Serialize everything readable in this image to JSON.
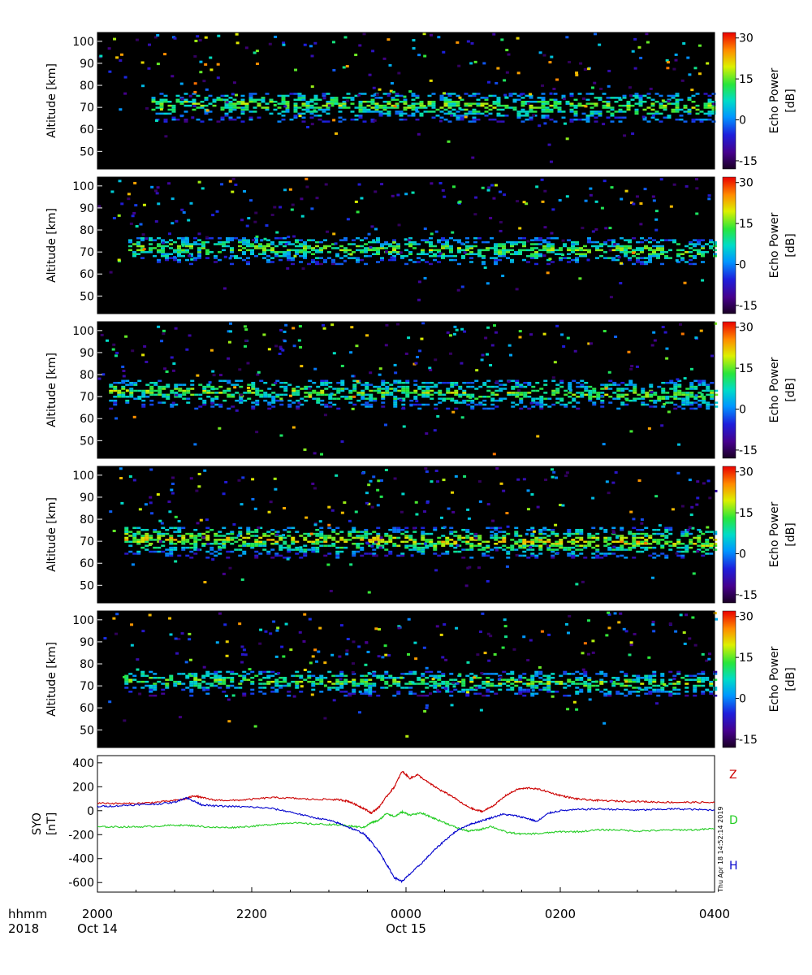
{
  "chart_data": [
    {
      "type": "heatmap",
      "ylabel": "Altitude [km]",
      "ylim": [
        42,
        104
      ],
      "yticks": [
        50,
        60,
        70,
        80,
        90,
        100
      ],
      "colorbar": {
        "label_line1": "Echo Power",
        "label_line2": "[dB]",
        "range": [
          -18,
          32
        ],
        "ticks": [
          30,
          15,
          0,
          -15
        ]
      },
      "echo_layer": {
        "start_hour": 1.4,
        "altitude_top_km": 76,
        "altitude_bottom_km": 68,
        "peak_db": 15
      }
    },
    {
      "type": "heatmap",
      "ylabel": "Altitude [km]",
      "ylim": [
        42,
        104
      ],
      "yticks": [
        50,
        60,
        70,
        80,
        90,
        100
      ],
      "colorbar": {
        "label_line1": "Echo Power",
        "label_line2": "[dB]",
        "range": [
          -18,
          32
        ],
        "ticks": [
          30,
          15,
          0,
          -15
        ]
      },
      "echo_layer": {
        "start_hour": 0.8,
        "altitude_top_km": 76,
        "altitude_bottom_km": 69,
        "peak_db": 15
      }
    },
    {
      "type": "heatmap",
      "ylabel": "Altitude [km]",
      "ylim": [
        42,
        104
      ],
      "yticks": [
        50,
        60,
        70,
        80,
        90,
        100
      ],
      "colorbar": {
        "label_line1": "Echo Power",
        "label_line2": "[dB]",
        "range": [
          -18,
          32
        ],
        "ticks": [
          30,
          15,
          0,
          -15
        ]
      },
      "echo_layer": {
        "start_hour": 0.3,
        "altitude_top_km": 77,
        "altitude_bottom_km": 69,
        "peak_db": 15
      }
    },
    {
      "type": "heatmap",
      "ylabel": "Altitude [km]",
      "ylim": [
        42,
        104
      ],
      "yticks": [
        50,
        60,
        70,
        80,
        90,
        100
      ],
      "colorbar": {
        "label_line1": "Echo Power",
        "label_line2": "[dB]",
        "range": [
          -18,
          32
        ],
        "ticks": [
          30,
          15,
          0,
          -15
        ]
      },
      "echo_layer": {
        "start_hour": 0.7,
        "altitude_top_km": 76,
        "altitude_bottom_km": 67,
        "peak_db": 20
      }
    },
    {
      "type": "heatmap",
      "ylabel": "Altitude [km]",
      "ylim": [
        42,
        104
      ],
      "yticks": [
        50,
        60,
        70,
        80,
        90,
        100
      ],
      "colorbar": {
        "label_line1": "Echo Power",
        "label_line2": "[dB]",
        "range": [
          -18,
          32
        ],
        "ticks": [
          30,
          15,
          0,
          -15
        ]
      },
      "echo_layer": {
        "start_hour": 0.7,
        "altitude_top_km": 76,
        "altitude_bottom_km": 70,
        "peak_db": 15
      }
    },
    {
      "type": "line",
      "ylabel_line1": "SYO",
      "ylabel_line2": "[nT]",
      "ylim": [
        -680,
        460
      ],
      "yticks": [
        400,
        200,
        0,
        -200,
        -400,
        -600
      ],
      "x_label_hours": "hours since 2000 UT Oct 14",
      "series": [
        {
          "name": "Z",
          "color": "#cc0000",
          "x": [
            0,
            0.5,
            1.0,
            1.5,
            2.0,
            2.3,
            2.5,
            2.7,
            3.0,
            3.5,
            4.0,
            4.5,
            5.0,
            5.5,
            6.0,
            6.3,
            6.5,
            6.7,
            6.9,
            7.1,
            7.3,
            7.5,
            7.7,
            7.9,
            8.1,
            8.3,
            8.6,
            8.9,
            9.2,
            9.5,
            9.8,
            10.0,
            10.3,
            10.6,
            10.9,
            11.2,
            11.5,
            11.8,
            12.1,
            12.4,
            12.7,
            13.0,
            13.5,
            14.0,
            14.5,
            15.0,
            15.5,
            16.0
          ],
          "values": [
            65,
            60,
            60,
            70,
            85,
            100,
            125,
            110,
            90,
            85,
            95,
            110,
            105,
            95,
            95,
            90,
            80,
            50,
            20,
            -20,
            30,
            120,
            200,
            330,
            270,
            300,
            230,
            170,
            120,
            50,
            5,
            -5,
            50,
            130,
            180,
            190,
            175,
            145,
            120,
            100,
            90,
            85,
            80,
            78,
            72,
            70,
            70,
            68
          ]
        },
        {
          "name": "D",
          "color": "#22cc22",
          "x": [
            0,
            0.5,
            1.0,
            1.5,
            2.0,
            2.5,
            3.0,
            3.5,
            4.0,
            4.5,
            5.0,
            5.5,
            6.0,
            6.3,
            6.6,
            6.9,
            7.1,
            7.3,
            7.5,
            7.7,
            7.9,
            8.1,
            8.4,
            8.7,
            9.0,
            9.3,
            9.6,
            9.9,
            10.2,
            10.6,
            11.0,
            11.5,
            12.0,
            12.5,
            13.0,
            13.5,
            14.0,
            14.5,
            15.0,
            15.5,
            16.0
          ],
          "values": [
            -135,
            -135,
            -135,
            -130,
            -120,
            -125,
            -140,
            -140,
            -130,
            -115,
            -100,
            -110,
            -115,
            -120,
            -130,
            -140,
            -100,
            -80,
            -20,
            -50,
            -10,
            -35,
            -20,
            -60,
            -100,
            -140,
            -170,
            -160,
            -130,
            -180,
            -195,
            -190,
            -175,
            -175,
            -160,
            -160,
            -170,
            -165,
            -160,
            -160,
            -150
          ]
        },
        {
          "name": "H",
          "color": "#0000cc",
          "x": [
            0,
            0.5,
            1.0,
            1.5,
            2.0,
            2.3,
            2.5,
            2.7,
            3.0,
            3.5,
            4.0,
            4.5,
            5.0,
            5.5,
            6.0,
            6.3,
            6.6,
            6.9,
            7.1,
            7.3,
            7.5,
            7.7,
            7.9,
            8.1,
            8.4,
            8.7,
            9.0,
            9.3,
            9.6,
            9.9,
            10.2,
            10.5,
            10.8,
            11.1,
            11.4,
            11.7,
            12.0,
            12.5,
            13.0,
            13.5,
            14.0,
            14.5,
            15.0,
            15.5,
            16.0
          ],
          "values": [
            35,
            40,
            50,
            55,
            70,
            110,
            80,
            50,
            40,
            35,
            30,
            20,
            -10,
            -50,
            -80,
            -110,
            -150,
            -190,
            -260,
            -340,
            -450,
            -560,
            -590,
            -530,
            -440,
            -340,
            -250,
            -170,
            -120,
            -90,
            -60,
            -30,
            -40,
            -60,
            -90,
            -20,
            0,
            10,
            15,
            10,
            5,
            10,
            15,
            10,
            5
          ]
        }
      ]
    }
  ],
  "x_axis": {
    "tick_labels": [
      "2000",
      "2200",
      "0000",
      "0200",
      "0400"
    ],
    "tick_hours": [
      0,
      4,
      8,
      12,
      16
    ],
    "row_label_time": "hhmm",
    "row_label_year": "2018",
    "date_labels": [
      {
        "text": "Oct 14",
        "hour": 0
      },
      {
        "text": "Oct 15",
        "hour": 8
      }
    ]
  },
  "timestamp": "Thu Apr 18 14:52:14 2019"
}
